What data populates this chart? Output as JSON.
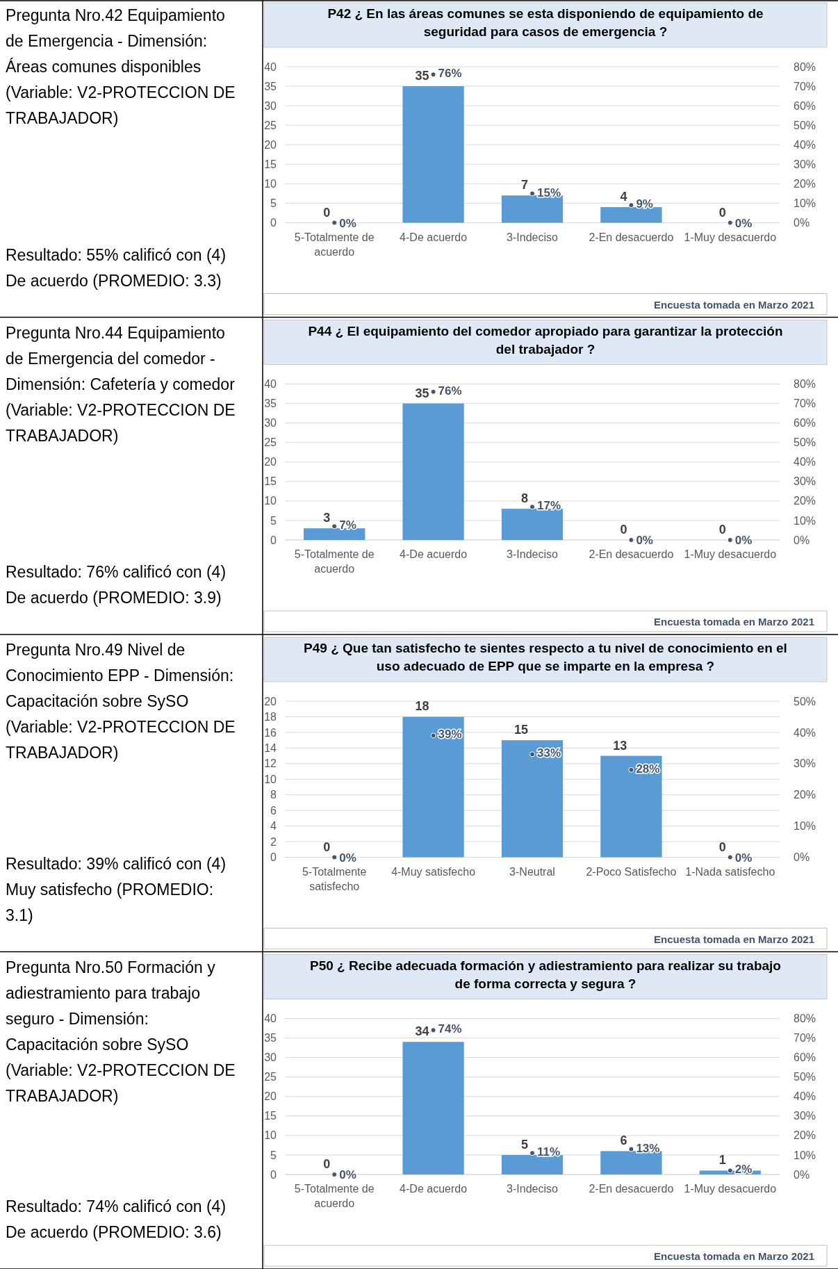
{
  "chart_data": [
    {
      "type": "bar",
      "title": "P42 ¿ En las áreas comunes se esta disponiendo de equipamiento de seguridad para casos de emergencia ?",
      "categories": [
        "5-Totalmente de acuerdo",
        "4-De acuerdo",
        "3-Indeciso",
        "2-En desacuerdo",
        "1-Muy desacuerdo"
      ],
      "series": [
        {
          "type": "bar",
          "color": "#5b9bd5",
          "values": [
            0,
            35,
            7,
            4,
            0
          ]
        },
        {
          "type": "scatter",
          "axis": "y2",
          "marker": "circle",
          "color": "#44546a",
          "values": [
            0,
            76,
            15,
            9,
            0
          ],
          "value_labels": [
            "0%",
            "76%",
            "15%",
            "9%",
            "0%"
          ]
        }
      ],
      "data_labels": true,
      "ylim": [
        0,
        40
      ],
      "yticks": [
        0,
        5,
        10,
        15,
        20,
        25,
        30,
        35,
        40
      ],
      "y2lim": [
        0,
        80
      ],
      "y2ticks": [
        {
          "value": 0,
          "label": "0%"
        },
        {
          "value": 10,
          "label": "10%"
        },
        {
          "value": 20,
          "label": "20%"
        },
        {
          "value": 30,
          "label": "30%"
        },
        {
          "value": 40,
          "label": "40%"
        },
        {
          "value": 50,
          "label": "50%"
        },
        {
          "value": 60,
          "label": "60%"
        },
        {
          "value": 70,
          "label": "70%"
        },
        {
          "value": 80,
          "label": "80%"
        }
      ],
      "grid": "y",
      "annotations": [
        "Pregunta Nro.42 Equipamiento de Emergencia - Dimensión: Áreas comunes disponibles (Variable: V2-PROTECCION DE TRABAJADOR)",
        "Resultado: 55% calificó con (4) De acuerdo (PROMEDIO: 3.3)",
        "Encuesta tomada en Marzo 2021"
      ]
    },
    {
      "type": "bar",
      "title": "P44 ¿ El equipamiento del comedor apropiado para garantizar la protección del trabajador ?",
      "categories": [
        "5-Totalmente de acuerdo",
        "4-De acuerdo",
        "3-Indeciso",
        "2-En desacuerdo",
        "1-Muy desacuerdo"
      ],
      "series": [
        {
          "type": "bar",
          "color": "#5b9bd5",
          "values": [
            3,
            35,
            8,
            0,
            0
          ]
        },
        {
          "type": "scatter",
          "axis": "y2",
          "marker": "circle",
          "color": "#44546a",
          "values": [
            7,
            76,
            17,
            0,
            0
          ],
          "value_labels": [
            "7%",
            "76%",
            "17%",
            "0%",
            "0%"
          ]
        }
      ],
      "data_labels": true,
      "ylim": [
        0,
        40
      ],
      "yticks": [
        0,
        5,
        10,
        15,
        20,
        25,
        30,
        35,
        40
      ],
      "y2lim": [
        0,
        80
      ],
      "y2ticks": [
        {
          "value": 0,
          "label": "0%"
        },
        {
          "value": 10,
          "label": "10%"
        },
        {
          "value": 20,
          "label": "20%"
        },
        {
          "value": 30,
          "label": "30%"
        },
        {
          "value": 40,
          "label": "40%"
        },
        {
          "value": 50,
          "label": "50%"
        },
        {
          "value": 60,
          "label": "60%"
        },
        {
          "value": 70,
          "label": "70%"
        },
        {
          "value": 80,
          "label": "80%"
        }
      ],
      "grid": "y",
      "annotations": [
        "Pregunta Nro.44 Equipamiento de Emergencia del comedor - Dimensión: Cafetería y comedor (Variable: V2-PROTECCION DE TRABAJADOR)",
        "Resultado: 76% calificó con (4) De acuerdo (PROMEDIO: 3.9)",
        "Encuesta tomada en Marzo 2021"
      ]
    },
    {
      "type": "bar",
      "title": "P49 ¿ Que tan satisfecho te sientes respecto a tu nivel de conocimiento en el uso adecuado de EPP que se imparte en la empresa ?",
      "categories": [
        "5-Totalmente satisfecho",
        "4-Muy satisfecho",
        "3-Neutral",
        "2-Poco Satisfecho",
        "1-Nada satisfecho"
      ],
      "series": [
        {
          "type": "bar",
          "color": "#5b9bd5",
          "values": [
            0,
            18,
            15,
            13,
            0
          ]
        },
        {
          "type": "scatter",
          "axis": "y2",
          "marker": "circle",
          "color": "#44546a",
          "values": [
            0,
            39,
            33,
            28,
            0
          ],
          "value_labels": [
            "0%",
            "39%",
            "33%",
            "28%",
            "0%"
          ]
        }
      ],
      "data_labels": true,
      "ylim": [
        0,
        20
      ],
      "yticks": [
        0,
        2,
        4,
        6,
        8,
        10,
        12,
        14,
        16,
        18,
        20
      ],
      "y2lim": [
        0,
        50
      ],
      "y2ticks": [
        {
          "value": 0,
          "label": "0%"
        },
        {
          "value": 10,
          "label": "10%"
        },
        {
          "value": 20,
          "label": "20%"
        },
        {
          "value": 30,
          "label": "30%"
        },
        {
          "value": 40,
          "label": "40%"
        },
        {
          "value": 50,
          "label": "50%"
        }
      ],
      "grid": "y",
      "annotations": [
        "Pregunta Nro.49 Nivel de Conocimiento EPP - Dimensión: Capacitación sobre SySO (Variable: V2-PROTECCION DE TRABAJADOR)",
        "Resultado: 39% calificó con (4) Muy satisfecho (PROMEDIO: 3.1)",
        "Encuesta tomada en Marzo 2021"
      ]
    },
    {
      "type": "bar",
      "title": "P50 ¿ Recibe adecuada formación y adiestramiento para realizar su trabajo de forma correcta y segura ?",
      "categories": [
        "5-Totalmente de acuerdo",
        "4-De acuerdo",
        "3-Indeciso",
        "2-En desacuerdo",
        "1-Muy desacuerdo"
      ],
      "series": [
        {
          "type": "bar",
          "color": "#5b9bd5",
          "values": [
            0,
            34,
            5,
            6,
            1
          ]
        },
        {
          "type": "scatter",
          "axis": "y2",
          "marker": "circle",
          "color": "#44546a",
          "values": [
            0,
            74,
            11,
            13,
            2
          ],
          "value_labels": [
            "0%",
            "74%",
            "11%",
            "13%",
            "2%"
          ]
        }
      ],
      "data_labels": true,
      "ylim": [
        0,
        40
      ],
      "yticks": [
        0,
        5,
        10,
        15,
        20,
        25,
        30,
        35,
        40
      ],
      "y2lim": [
        0,
        80
      ],
      "y2ticks": [
        {
          "value": 0,
          "label": "0%"
        },
        {
          "value": 10,
          "label": "10%"
        },
        {
          "value": 20,
          "label": "20%"
        },
        {
          "value": 30,
          "label": "30%"
        },
        {
          "value": 40,
          "label": "40%"
        },
        {
          "value": 50,
          "label": "50%"
        },
        {
          "value": 60,
          "label": "60%"
        },
        {
          "value": 70,
          "label": "70%"
        },
        {
          "value": 80,
          "label": "80%"
        }
      ],
      "grid": "y",
      "annotations": [
        "Pregunta Nro.50 Formación y adiestramiento para trabajo seguro - Dimensión: Capacitación sobre SySO (Variable: V2-PROTECCION DE TRABAJADOR)",
        "Resultado: 74% calificó con (4) De acuerdo (PROMEDIO: 3.6)",
        "Encuesta tomada en Marzo 2021"
      ]
    }
  ]
}
